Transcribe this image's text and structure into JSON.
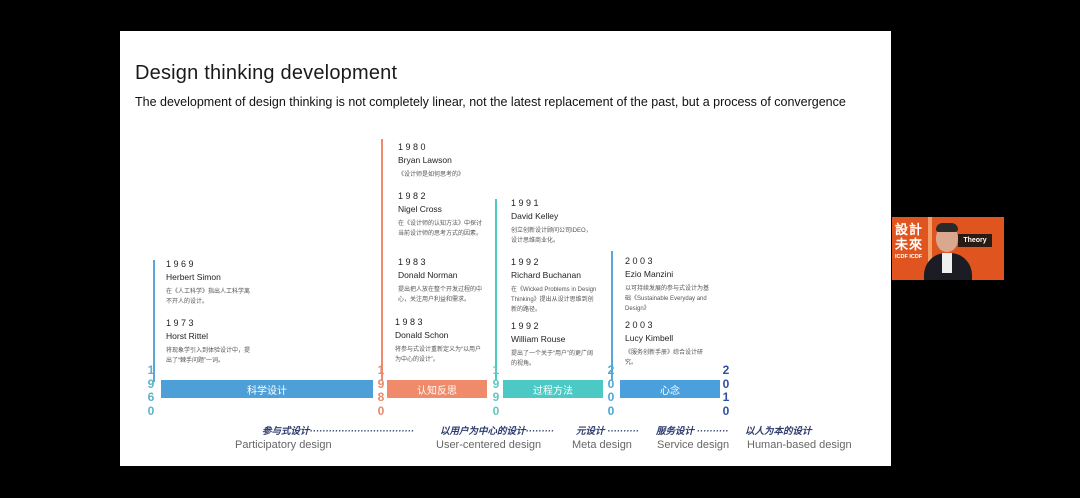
{
  "slide": {
    "title": "Design thinking development",
    "subtitle": "The development of design thinking is not completely linear, not the latest replacement of the past, but a process of convergence"
  },
  "entries": [
    {
      "year": "1969",
      "name": "Herbert Simon",
      "desc": "在《人工科学》指出人工科学离不开人的设计。"
    },
    {
      "year": "1973",
      "name": "Horst Rittel",
      "desc": "将现象学引入到体验设计中，提出了“棘手问题”一词。"
    },
    {
      "year": "1980",
      "name": "Bryan Lawson",
      "desc": "《设计师是如何思考的》"
    },
    {
      "year": "1982",
      "name": "Nigel Cross",
      "desc": "在《设计师的认知方法》中探讨当前设计师的思考方式的因素。"
    },
    {
      "year": "1983",
      "name": "Donald Norman",
      "desc": "提出把人放在整个开发过程的中心，关注用户利益和需求。"
    },
    {
      "year": "1983",
      "name": "Donald Schon",
      "desc": "将参与式设计重新定义为“以用户为中心的设计”。"
    },
    {
      "year": "1991",
      "name": "David Kelley",
      "desc": "创立创新设计顾问公司IDEO，设计思维商业化。"
    },
    {
      "year": "1992",
      "name": "Richard Buchanan",
      "desc": "在《Wicked Problems in Design Thinking》提出从设计思维到创新的路径。"
    },
    {
      "year": "1992",
      "name": "William Rouse",
      "desc": "提出了一个关于“用户”的更广阔的视角。"
    },
    {
      "year": "2003",
      "name": "Ezio Manzini",
      "desc": "以可持续发展的参与式设计为基础《Sustainable Everyday and Design》"
    },
    {
      "year": "2003",
      "name": "Lucy Kimbell",
      "desc": "《服务创新手册》综合设计研究。"
    }
  ],
  "timeline": {
    "decades": [
      {
        "digits": [
          "1",
          "9",
          "6",
          "0"
        ],
        "color": "#5fb3c8"
      },
      {
        "digits": [
          "1",
          "9",
          "8",
          "0"
        ],
        "color": "#e8896a"
      },
      {
        "digits": [
          "1",
          "9",
          "9",
          "0"
        ],
        "color": "#5fc8c0"
      },
      {
        "digits": [
          "2",
          "0",
          "0",
          "0"
        ],
        "color": "#4aa6d6"
      },
      {
        "digits": [
          "2",
          "0",
          "1",
          "0"
        ],
        "color": "#2f4f9e"
      }
    ],
    "bars": [
      {
        "label": "科学设计",
        "color": "#4d9fd8"
      },
      {
        "label": "认知反思",
        "color": "#ef8a6a"
      },
      {
        "label": "过程方法",
        "color": "#4cc9c4"
      },
      {
        "label": "心念",
        "color": "#4aa0dc"
      }
    ],
    "line_colors": {
      "blue": "#5aa8d8",
      "orange": "#ef8a6a",
      "teal": "#4cc9c4"
    }
  },
  "phases": [
    {
      "zh": "参与式设计·································",
      "en": "Participatory design"
    },
    {
      "zh": "以用户为中心的设计·········",
      "en": "User-centered design"
    },
    {
      "zh": "元设计 ··········",
      "en": "Meta design"
    },
    {
      "zh": "服务设计 ··········",
      "en": "Service design"
    },
    {
      "zh": "以人为本的设计",
      "en": "Human-based design"
    }
  ],
  "camera": {
    "logo_line1": "設計",
    "logo_line2": "未來",
    "sub": "ICDF ICDF",
    "board": "Theory",
    "bg": "#e0551f"
  }
}
